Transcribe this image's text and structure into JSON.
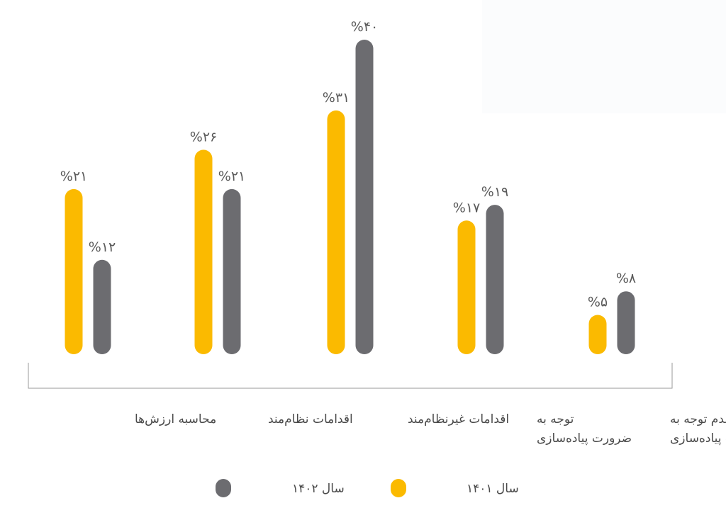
{
  "colors": {
    "series_1401": "#FBBA00",
    "series_1402": "#6C6C70",
    "frame": "#9a9a9a",
    "label_text": "#4a4a4a",
    "value_text": "#5a5a5a"
  },
  "chart_data": {
    "type": "bar",
    "direction": "rtl",
    "categories": [
      [
        "عدم توجه به",
        "ضرورت  پیاده‌سازی"
      ],
      [
        "توجه به",
        "ضرورت پیاده‌سازی"
      ],
      [
        "اقدامات غیرنظام‌مند"
      ],
      [
        "اقدامات نظام‌مند"
      ],
      [
        "محاسبه ارزش‌ها"
      ]
    ],
    "series": [
      {
        "name": "سال ۱۴۰۱",
        "color": "#FBBA00",
        "values": [
          5,
          17,
          31,
          26,
          21
        ],
        "value_labels": [
          "%۵",
          "%۱۷",
          "%۳۱",
          "%۲۶",
          "%۲۱"
        ]
      },
      {
        "name": "سال ۱۴۰۲",
        "color": "#6C6C70",
        "values": [
          8,
          19,
          40,
          21,
          12
        ],
        "value_labels": [
          "%۸",
          "%۱۹",
          "%۴۰",
          "%۲۱",
          "%۱۲"
        ]
      }
    ],
    "ylim": [
      0,
      40
    ],
    "grid": false,
    "legend_position": "bottom"
  }
}
